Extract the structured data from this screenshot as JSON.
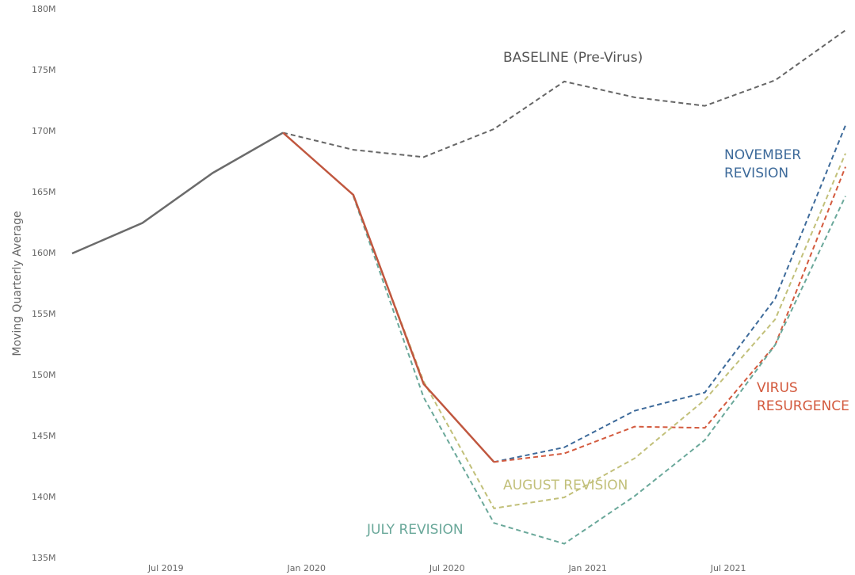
{
  "chart_data": {
    "type": "line",
    "y_label": "Moving Quarterly Average",
    "x": [
      "2019-03",
      "2019-06",
      "2019-09",
      "2019-12",
      "2020-03",
      "2020-06",
      "2020-09",
      "2020-12",
      "2021-03",
      "2021-06",
      "2021-09",
      "2021-12"
    ],
    "xticks": [
      {
        "value": "2019-07",
        "label": "Jul 2019"
      },
      {
        "value": "2020-01",
        "label": "Jan 2020"
      },
      {
        "value": "2020-07",
        "label": "Jul 2020"
      },
      {
        "value": "2021-01",
        "label": "Jan 2021"
      },
      {
        "value": "2021-07",
        "label": "Jul 2021"
      }
    ],
    "ylim": [
      135,
      180
    ],
    "yticks": [
      {
        "value": 135,
        "label": "135M"
      },
      {
        "value": 140,
        "label": "140M"
      },
      {
        "value": 145,
        "label": "145M"
      },
      {
        "value": 150,
        "label": "150M"
      },
      {
        "value": 155,
        "label": "155M"
      },
      {
        "value": 160,
        "label": "160M"
      },
      {
        "value": 165,
        "label": "165M"
      },
      {
        "value": 170,
        "label": "170M"
      },
      {
        "value": 175,
        "label": "175M"
      },
      {
        "value": 180,
        "label": "180M"
      }
    ],
    "grid": false,
    "series": [
      {
        "name": "BASELINE (Pre-Virus)",
        "color": "#666666",
        "dashed": true,
        "values": [
          null,
          null,
          null,
          169.9,
          168.5,
          167.9,
          170.2,
          174.1,
          172.8,
          172.1,
          174.2,
          178.3
        ]
      },
      {
        "name": "NOVEMBER REVISION",
        "color": "#3d6a9a",
        "dashed": true,
        "values": [
          null,
          null,
          null,
          null,
          null,
          null,
          142.9,
          144.1,
          147.1,
          148.6,
          156.3,
          170.5
        ]
      },
      {
        "name": "VIRUS RESURGENCE",
        "color": "#d35a3e",
        "dashed": true,
        "values": [
          null,
          null,
          null,
          null,
          null,
          null,
          142.9,
          143.6,
          145.8,
          145.7,
          152.5,
          167.1
        ]
      },
      {
        "name": "AUGUST REVISION",
        "color": "#c2c07a",
        "dashed": true,
        "values": [
          null,
          null,
          null,
          null,
          164.7,
          149.5,
          139.1,
          140.0,
          143.2,
          148.0,
          154.6,
          168.2
        ]
      },
      {
        "name": "JULY REVISION",
        "color": "#6aa89a",
        "dashed": true,
        "values": [
          null,
          null,
          null,
          null,
          164.7,
          148.2,
          137.9,
          136.2,
          140.1,
          144.7,
          152.5,
          164.7
        ]
      },
      {
        "color": "#6b6b6b",
        "dashed": false,
        "values": [
          160.0,
          162.5,
          166.6,
          169.9,
          null,
          null,
          null,
          null,
          null,
          null,
          null,
          null
        ]
      },
      {
        "color": "#c0573f",
        "dashed": false,
        "values": [
          null,
          null,
          null,
          169.9,
          164.8,
          149.3,
          142.9,
          null,
          null,
          null,
          null,
          null
        ]
      }
    ]
  }
}
